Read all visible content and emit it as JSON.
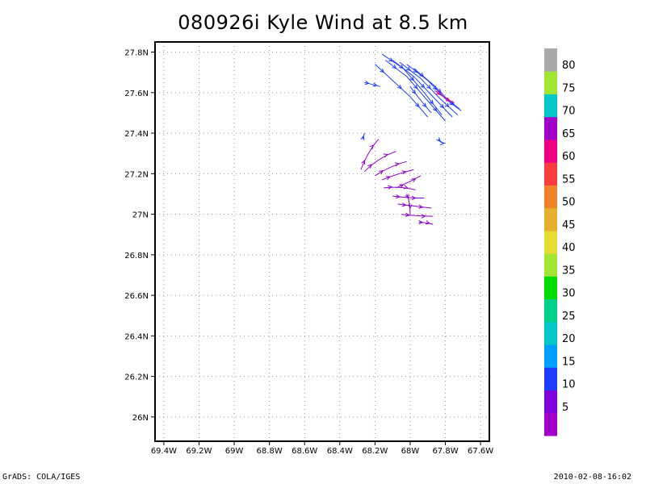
{
  "chart_data": {
    "type": "vector",
    "title": "080926i Kyle Wind at 8.5 km",
    "xlabel": "",
    "ylabel": "",
    "xlim": [
      -69.45,
      -67.55
    ],
    "ylim": [
      25.88,
      27.85
    ],
    "x_ticks": [
      "69.4W",
      "69.2W",
      "69W",
      "68.8W",
      "68.6W",
      "68.4W",
      "68.2W",
      "68W",
      "67.8W",
      "67.6W"
    ],
    "y_ticks": [
      "26N",
      "26.2N",
      "26.4N",
      "26.6N",
      "26.8N",
      "27N",
      "27.2N",
      "27.4N",
      "27.6N",
      "27.8N"
    ],
    "grid": true,
    "colorbar": {
      "labels": [
        "5",
        "10",
        "15",
        "20",
        "25",
        "30",
        "35",
        "40",
        "45",
        "50",
        "55",
        "60",
        "65",
        "70",
        "75",
        "80"
      ],
      "colors": [
        "#a000c8",
        "#8200dc",
        "#1e3cff",
        "#00a0ff",
        "#00c8c8",
        "#00d28c",
        "#00dc00",
        "#a0e632",
        "#e6dc32",
        "#e6af2d",
        "#f08228",
        "#fa3c3c",
        "#f00082",
        "#a000c8",
        "#00c8c8",
        "#a0e632",
        "#aaaaaa"
      ]
    },
    "streamlines": [
      {
        "color": "#1e3cff",
        "points": [
          [
            -68.16,
            27.79
          ],
          [
            -68.04,
            27.72
          ],
          [
            -67.92,
            27.6
          ],
          [
            -67.82,
            27.49
          ]
        ]
      },
      {
        "color": "#1e3cff",
        "points": [
          [
            -68.14,
            27.76
          ],
          [
            -68.02,
            27.68
          ],
          [
            -67.9,
            27.56
          ],
          [
            -67.8,
            27.46
          ]
        ]
      },
      {
        "color": "#1e3cff",
        "points": [
          [
            -68.1,
            27.76
          ],
          [
            -67.98,
            27.68
          ],
          [
            -67.86,
            27.57
          ],
          [
            -67.76,
            27.48
          ]
        ]
      },
      {
        "color": "#1e3cff",
        "points": [
          [
            -68.06,
            27.75
          ],
          [
            -67.94,
            27.67
          ],
          [
            -67.83,
            27.57
          ],
          [
            -67.73,
            27.49
          ]
        ]
      },
      {
        "color": "#1e3cff",
        "points": [
          [
            -68.02,
            27.74
          ],
          [
            -67.9,
            27.66
          ],
          [
            -67.8,
            27.57
          ],
          [
            -67.71,
            27.51
          ]
        ]
      },
      {
        "color": "#1e3cff",
        "points": [
          [
            -67.98,
            27.72
          ],
          [
            -67.87,
            27.64
          ],
          [
            -67.78,
            27.56
          ],
          [
            -67.72,
            27.52
          ]
        ]
      },
      {
        "color": "#1e3cff",
        "points": [
          [
            -68.2,
            27.74
          ],
          [
            -68.1,
            27.66
          ],
          [
            -68.0,
            27.58
          ],
          [
            -67.9,
            27.48
          ]
        ]
      },
      {
        "color": "#1e3cff",
        "points": [
          [
            -68.0,
            27.63
          ],
          [
            -67.94,
            27.56
          ],
          [
            -67.88,
            27.5
          ]
        ]
      },
      {
        "color": "#e6007e",
        "points": [
          [
            -67.86,
            27.61
          ],
          [
            -67.8,
            27.57
          ],
          [
            -67.75,
            27.55
          ]
        ]
      },
      {
        "color": "#1e3cff",
        "points": [
          [
            -68.26,
            27.65
          ],
          [
            -68.21,
            27.64
          ],
          [
            -68.17,
            27.63
          ]
        ]
      },
      {
        "color": "#1e3cff",
        "points": [
          [
            -67.84,
            27.37
          ],
          [
            -67.82,
            27.35
          ],
          [
            -67.8,
            27.35
          ]
        ]
      },
      {
        "color": "#8a00c8",
        "points": [
          [
            -68.28,
            27.22
          ],
          [
            -68.24,
            27.31
          ],
          [
            -68.18,
            27.37
          ]
        ]
      },
      {
        "color": "#8a00c8",
        "points": [
          [
            -68.26,
            27.21
          ],
          [
            -68.18,
            27.28
          ],
          [
            -68.08,
            27.31
          ]
        ]
      },
      {
        "color": "#8a00c8",
        "points": [
          [
            -68.2,
            27.19
          ],
          [
            -68.11,
            27.24
          ],
          [
            -68.02,
            27.26
          ]
        ]
      },
      {
        "color": "#8a00c8",
        "points": [
          [
            -68.16,
            27.17
          ],
          [
            -68.07,
            27.2
          ],
          [
            -67.98,
            27.22
          ]
        ]
      },
      {
        "color": "#8a00c8",
        "points": [
          [
            -68.15,
            27.13
          ],
          [
            -68.06,
            27.14
          ],
          [
            -67.97,
            27.12
          ]
        ]
      },
      {
        "color": "#8a00c8",
        "points": [
          [
            -68.1,
            27.09
          ],
          [
            -68.02,
            27.08
          ],
          [
            -67.92,
            27.08
          ]
        ]
      },
      {
        "color": "#8a00c8",
        "points": [
          [
            -68.07,
            27.05
          ],
          [
            -67.98,
            27.04
          ],
          [
            -67.88,
            27.03
          ]
        ]
      },
      {
        "color": "#8a00c8",
        "points": [
          [
            -68.05,
            27.0
          ],
          [
            -67.96,
            26.99
          ],
          [
            -67.87,
            26.99
          ]
        ]
      },
      {
        "color": "#8a00c8",
        "points": [
          [
            -68.08,
            27.13
          ],
          [
            -68.0,
            27.16
          ],
          [
            -67.94,
            27.19
          ]
        ]
      },
      {
        "color": "#8a00c8",
        "points": [
          [
            -68.02,
            27.1
          ],
          [
            -68.0,
            27.06
          ],
          [
            -68.0,
            27.0
          ]
        ]
      },
      {
        "color": "#8a00c8",
        "points": [
          [
            -67.95,
            26.96
          ],
          [
            -67.91,
            26.96
          ],
          [
            -67.87,
            26.95
          ]
        ]
      },
      {
        "color": "#1e3cff",
        "points": [
          [
            -68.27,
            27.37
          ],
          [
            -68.26,
            27.4
          ]
        ]
      }
    ]
  },
  "footer": {
    "left": "GrADS: COLA/IGES",
    "right": "2010-02-08-16:02"
  }
}
